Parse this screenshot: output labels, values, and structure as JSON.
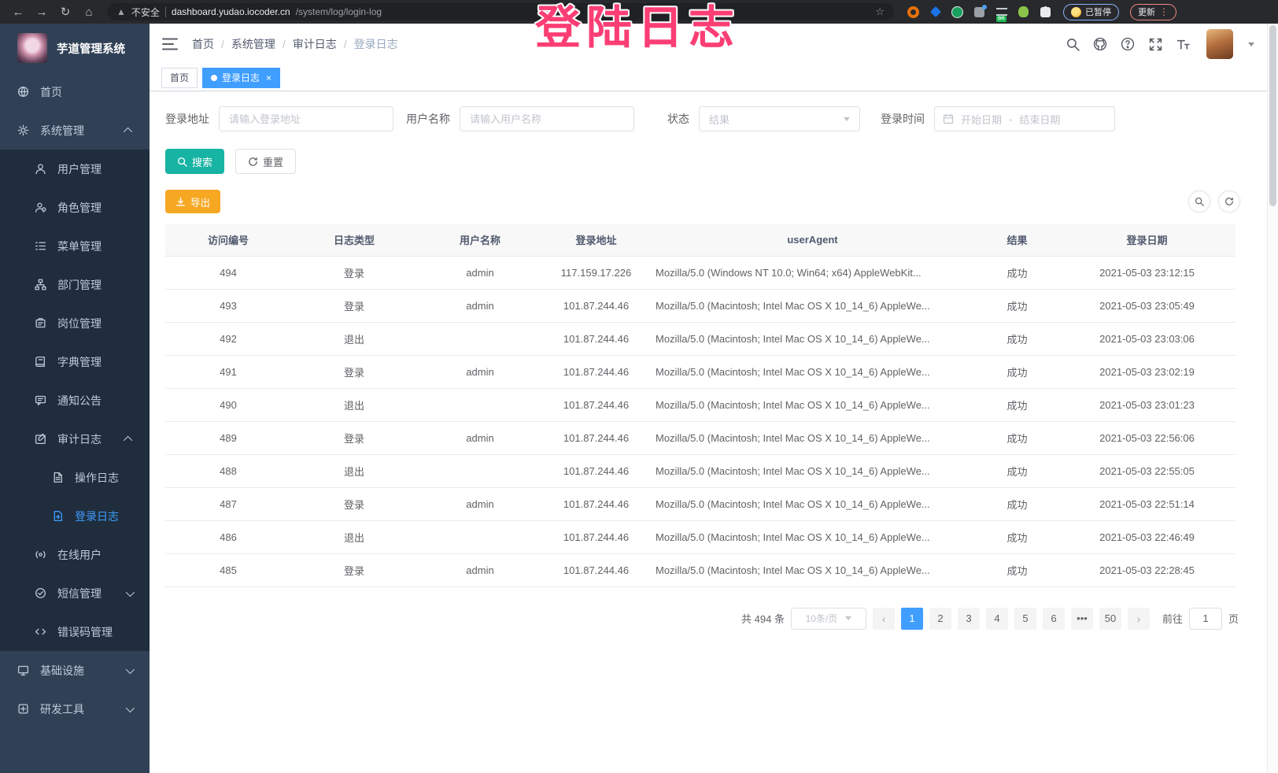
{
  "colors": {
    "accent": "#409eff",
    "search-btn": "#17b3a3",
    "export-btn": "#f6a823",
    "sidebar-bg": "#304156",
    "submenu-bg": "#1f2d3d",
    "overlay-pink": "#fb3e74"
  },
  "overlay": {
    "text": "登陆日志"
  },
  "browser": {
    "security_text": "不安全",
    "url_domain": "dashboard.yudao.iocoder.cn",
    "url_path": "/system/log/login-log",
    "extensions": [
      {
        "icon": "ext-orange-icon"
      },
      {
        "icon": "ext-gem-icon"
      },
      {
        "icon": "ext-green-icon"
      },
      {
        "icon": "ext-apps-icon",
        "badge": ""
      },
      {
        "icon": "ext-list-on-icon",
        "badge": "on"
      },
      {
        "icon": "ext-creature-icon"
      },
      {
        "icon": "ext-puzzle-icon"
      }
    ],
    "paused_label": "已暂停",
    "update_label": "更新"
  },
  "sidebar": {
    "title": "芋道管理系统",
    "items": [
      {
        "id": "home",
        "label": "首页",
        "icon": "dashboard-icon",
        "level": 1
      },
      {
        "id": "system-mgmt",
        "label": "系统管理",
        "icon": "gear-icon",
        "level": 1,
        "chevron": "up"
      },
      {
        "id": "user-mgmt",
        "label": "用户管理",
        "icon": "user-icon",
        "level": 2
      },
      {
        "id": "role-mgmt",
        "label": "角色管理",
        "icon": "role-icon",
        "level": 2
      },
      {
        "id": "menu-mgmt",
        "label": "菜单管理",
        "icon": "menu-icon",
        "level": 2
      },
      {
        "id": "dept-mgmt",
        "label": "部门管理",
        "icon": "dept-icon",
        "level": 2
      },
      {
        "id": "post-mgmt",
        "label": "岗位管理",
        "icon": "post-icon",
        "level": 2
      },
      {
        "id": "dict-mgmt",
        "label": "字典管理",
        "icon": "dict-icon",
        "level": 2
      },
      {
        "id": "notice",
        "label": "通知公告",
        "icon": "notice-icon",
        "level": 2
      },
      {
        "id": "audit-log",
        "label": "审计日志",
        "icon": "audit-icon",
        "level": 2,
        "chevron": "up"
      },
      {
        "id": "operate-log",
        "label": "操作日志",
        "icon": "doc-icon",
        "level": 3
      },
      {
        "id": "login-log",
        "label": "登录日志",
        "icon": "login-log-icon",
        "level": 3,
        "active": true
      },
      {
        "id": "online-users",
        "label": "在线用户",
        "icon": "online-icon",
        "level": 2
      },
      {
        "id": "sms-mgmt",
        "label": "短信管理",
        "icon": "sms-icon",
        "level": 2,
        "chevron": "down"
      },
      {
        "id": "errcode-mgmt",
        "label": "错误码管理",
        "icon": "code-icon",
        "level": 2
      },
      {
        "id": "infrastructure",
        "label": "基础设施",
        "icon": "infra-icon",
        "level": 1,
        "chevron": "down"
      },
      {
        "id": "dev-tools",
        "label": "研发工具",
        "icon": "devtools-icon",
        "level": 1,
        "chevron": "down"
      }
    ]
  },
  "header": {
    "breadcrumb": [
      "首页",
      "系统管理",
      "审计日志",
      "登录日志"
    ]
  },
  "tabs": [
    {
      "label": "首页",
      "active": false,
      "closable": false
    },
    {
      "label": "登录日志",
      "active": true,
      "closable": true
    }
  ],
  "filters": {
    "address": {
      "label": "登录地址",
      "placeholder": "请输入登录地址"
    },
    "username": {
      "label": "用户名称",
      "placeholder": "请输入用户名称"
    },
    "status": {
      "label": "状态",
      "placeholder": "结果"
    },
    "time": {
      "label": "登录时间",
      "start_placeholder": "开始日期",
      "separator": "-",
      "end_placeholder": "结束日期"
    },
    "search_label": "搜索",
    "reset_label": "重置",
    "export_label": "导出"
  },
  "table": {
    "headers": [
      "访问编号",
      "日志类型",
      "用户名称",
      "登录地址",
      "userAgent",
      "结果",
      "登录日期"
    ],
    "rows": [
      [
        "494",
        "登录",
        "admin",
        "117.159.17.226",
        "Mozilla/5.0 (Windows NT 10.0; Win64; x64) AppleWebKit...",
        "成功",
        "2021-05-03 23:12:15"
      ],
      [
        "493",
        "登录",
        "admin",
        "101.87.244.46",
        "Mozilla/5.0 (Macintosh; Intel Mac OS X 10_14_6) AppleWe...",
        "成功",
        "2021-05-03 23:05:49"
      ],
      [
        "492",
        "退出",
        "",
        "101.87.244.46",
        "Mozilla/5.0 (Macintosh; Intel Mac OS X 10_14_6) AppleWe...",
        "成功",
        "2021-05-03 23:03:06"
      ],
      [
        "491",
        "登录",
        "admin",
        "101.87.244.46",
        "Mozilla/5.0 (Macintosh; Intel Mac OS X 10_14_6) AppleWe...",
        "成功",
        "2021-05-03 23:02:19"
      ],
      [
        "490",
        "退出",
        "",
        "101.87.244.46",
        "Mozilla/5.0 (Macintosh; Intel Mac OS X 10_14_6) AppleWe...",
        "成功",
        "2021-05-03 23:01:23"
      ],
      [
        "489",
        "登录",
        "admin",
        "101.87.244.46",
        "Mozilla/5.0 (Macintosh; Intel Mac OS X 10_14_6) AppleWe...",
        "成功",
        "2021-05-03 22:56:06"
      ],
      [
        "488",
        "退出",
        "",
        "101.87.244.46",
        "Mozilla/5.0 (Macintosh; Intel Mac OS X 10_14_6) AppleWe...",
        "成功",
        "2021-05-03 22:55:05"
      ],
      [
        "487",
        "登录",
        "admin",
        "101.87.244.46",
        "Mozilla/5.0 (Macintosh; Intel Mac OS X 10_14_6) AppleWe...",
        "成功",
        "2021-05-03 22:51:14"
      ],
      [
        "486",
        "退出",
        "",
        "101.87.244.46",
        "Mozilla/5.0 (Macintosh; Intel Mac OS X 10_14_6) AppleWe...",
        "成功",
        "2021-05-03 22:46:49"
      ],
      [
        "485",
        "登录",
        "admin",
        "101.87.244.46",
        "Mozilla/5.0 (Macintosh; Intel Mac OS X 10_14_6) AppleWe...",
        "成功",
        "2021-05-03 22:28:45"
      ]
    ]
  },
  "pagination": {
    "total": "共 494 条",
    "page_size": "10条/页",
    "pages": [
      "1",
      "2",
      "3",
      "4",
      "5",
      "6",
      "•••",
      "50"
    ],
    "active_page": "1",
    "goto_label": "前往",
    "goto_value": "1",
    "goto_unit": "页"
  }
}
